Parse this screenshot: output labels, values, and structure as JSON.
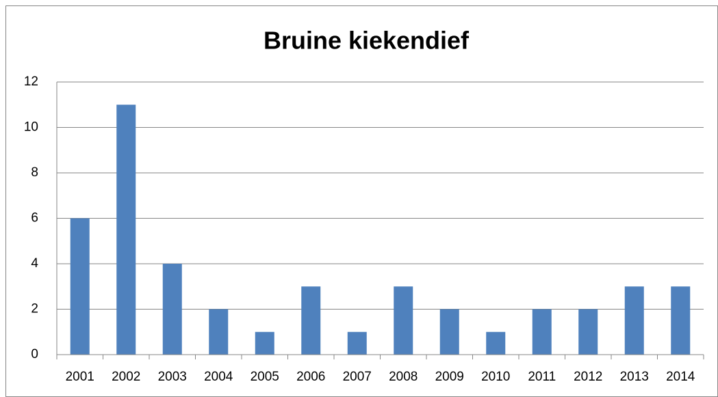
{
  "chart_data": {
    "type": "bar",
    "title": "Bruine kiekendief",
    "categories": [
      "2001",
      "2002",
      "2003",
      "2004",
      "2005",
      "2006",
      "2007",
      "2008",
      "2009",
      "2010",
      "2011",
      "2012",
      "2013",
      "2014"
    ],
    "values": [
      6,
      11,
      4,
      2,
      1,
      3,
      1,
      3,
      2,
      1,
      2,
      2,
      3,
      3
    ],
    "color": "#4f81bd",
    "ylim": [
      0,
      12
    ],
    "yticks": [
      0,
      2,
      4,
      6,
      8,
      10,
      12
    ],
    "grid": true
  }
}
